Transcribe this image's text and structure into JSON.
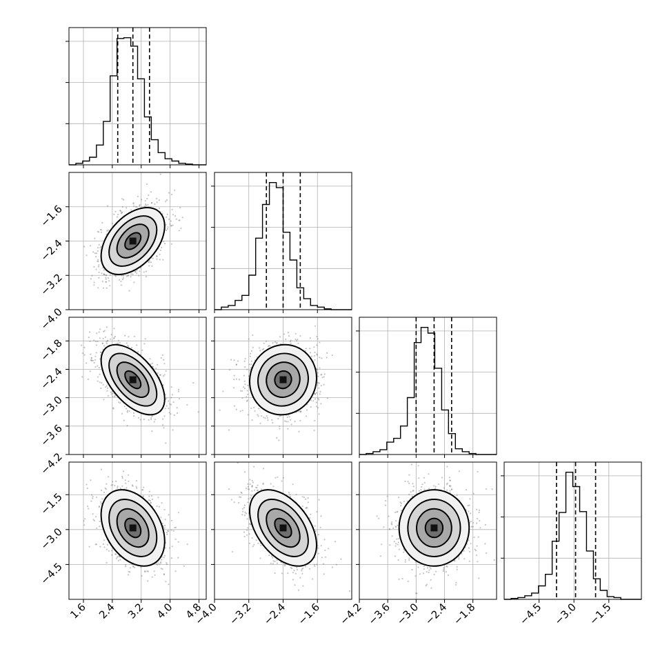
{
  "chart_data": {
    "type": "corner",
    "parameters": [
      {
        "id": "p1",
        "range": [
          1.2,
          5.0
        ],
        "ticks": [
          "1.6",
          "2.4",
          "3.2",
          "4.0",
          "4.8"
        ],
        "quantiles": [
          2.55,
          2.97,
          3.43
        ]
      },
      {
        "id": "p2",
        "range": [
          -4.0,
          -0.8
        ],
        "ticks": [
          "-4.0",
          "-3.2",
          "-2.4",
          "-1.6"
        ],
        "quantiles": [
          -2.79,
          -2.4,
          -2.0
        ]
      },
      {
        "id": "p3",
        "range": [
          -4.2,
          -1.3
        ],
        "ticks": [
          "-4.2",
          "-3.6",
          "-3.0",
          "-2.4",
          "-1.8"
        ],
        "quantiles": [
          -3.0,
          -2.62,
          -2.25
        ]
      },
      {
        "id": "p4",
        "range": [
          -6.0,
          -0.1
        ],
        "ticks": [
          "-4.5",
          "-3.0",
          "-1.5"
        ],
        "quantiles": [
          -3.75,
          -2.93,
          -2.07
        ]
      }
    ],
    "row_tick_labels": [
      [],
      [
        "-1.6",
        "-2.4",
        "-3.2",
        "-4.0"
      ],
      [
        "-1.8",
        "-2.4",
        "-3.0",
        "-3.6",
        "-4.2"
      ],
      [
        "-1.5",
        "-3.0",
        "-4.5"
      ]
    ],
    "bottom_tick_labels": [
      [
        "1.6",
        "2.4",
        "3.2",
        "4.0",
        "4.8"
      ],
      [
        "-4.0",
        "-3.2",
        "-2.4",
        "-1.6"
      ],
      [
        "-4.2",
        "-3.6",
        "-3.0",
        "-2.4",
        "-1.8"
      ],
      [
        "-4.5",
        "-3.0",
        "-1.5"
      ]
    ],
    "histograms": [
      {
        "param": "p1",
        "bin_edges_start": 1.2,
        "bin_width": 0.19,
        "counts": [
          0,
          2,
          5,
          10,
          26,
          57,
          117,
          166,
          167,
          156,
          113,
          63,
          33,
          16,
          8,
          5,
          2,
          1,
          0,
          0
        ]
      },
      {
        "param": "p2",
        "bin_edges_start": -4.0,
        "bin_width": 0.16,
        "counts": [
          0,
          3,
          5,
          11,
          17,
          41,
          85,
          125,
          151,
          145,
          92,
          59,
          26,
          13,
          5,
          3,
          1,
          0,
          0,
          0
        ]
      },
      {
        "param": "p3",
        "bin_edges_start": -4.2,
        "bin_width": 0.145,
        "counts": [
          0,
          1,
          3,
          5,
          13,
          17,
          30,
          60,
          118,
          134,
          128,
          91,
          47,
          22,
          6,
          3,
          1,
          0,
          0,
          0
        ]
      },
      {
        "param": "p4",
        "bin_edges_start": -6.0,
        "bin_width": 0.295,
        "counts": [
          0,
          1,
          2,
          4,
          7,
          15,
          28,
          65,
          97,
          142,
          126,
          98,
          54,
          23,
          10,
          3,
          2,
          0,
          0,
          0
        ]
      }
    ],
    "pairs": [
      {
        "x": "p1",
        "y": "p2",
        "mean": [
          2.97,
          -2.4
        ],
        "sd": [
          0.44,
          0.39
        ],
        "corr": 0.45
      },
      {
        "x": "p1",
        "y": "p3",
        "mean": [
          2.97,
          -2.62
        ],
        "sd": [
          0.44,
          0.37
        ],
        "corr": -0.55
      },
      {
        "x": "p2",
        "y": "p3",
        "mean": [
          -2.4,
          -2.62
        ],
        "sd": [
          0.39,
          0.37
        ],
        "corr": 0.05
      },
      {
        "x": "p1",
        "y": "p4",
        "mean": [
          2.97,
          -2.93
        ],
        "sd": [
          0.44,
          0.82
        ],
        "corr": -0.35
      },
      {
        "x": "p2",
        "y": "p4",
        "mean": [
          -2.4,
          -2.93
        ],
        "sd": [
          0.39,
          0.82
        ],
        "corr": -0.45
      },
      {
        "x": "p3",
        "y": "p4",
        "mean": [
          -2.62,
          -2.93
        ],
        "sd": [
          0.37,
          0.82
        ],
        "corr": 0.0
      }
    ],
    "contour_levels_sigma": [
      0.5,
      1.0,
      1.5,
      2.0
    ],
    "grid": true,
    "quantile_line_style": "dashed"
  }
}
